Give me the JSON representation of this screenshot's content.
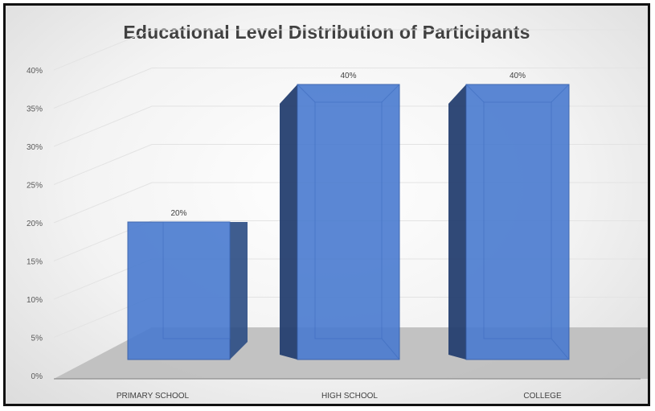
{
  "chart_data": {
    "type": "bar",
    "title": "Educational Level Distribution of Participants",
    "categories": [
      "PRIMARY SCHOOL",
      "HIGH SCHOOL",
      "COLLEGE"
    ],
    "values": [
      20,
      40,
      40
    ],
    "data_labels": [
      "20%",
      "40%",
      "40%"
    ],
    "ylim": [
      0,
      40
    ],
    "y_ticks": [
      "0%",
      "5%",
      "10%",
      "15%",
      "20%",
      "25%",
      "30%",
      "35%",
      "40%"
    ],
    "grid": true,
    "style": "3d-column",
    "bar_color": "#4a7bd0"
  }
}
